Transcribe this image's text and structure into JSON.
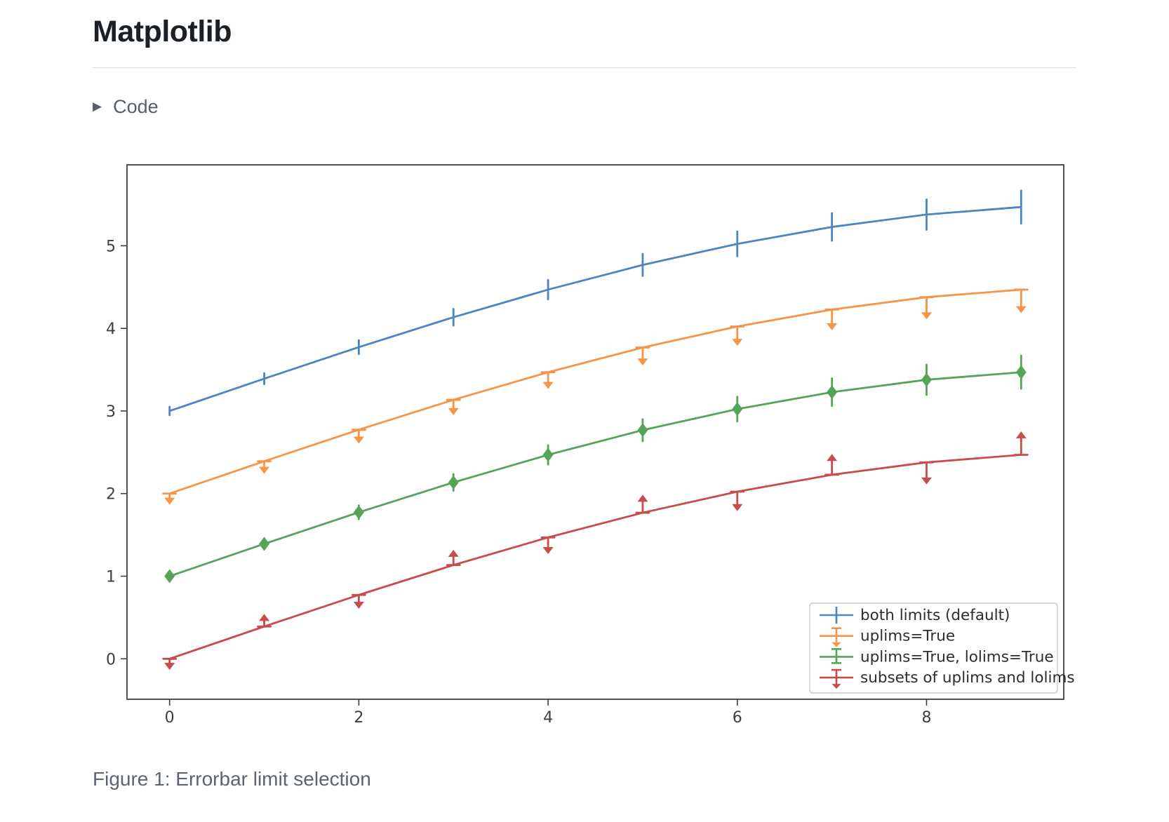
{
  "page": {
    "title": "Matplotlib"
  },
  "code_section": {
    "label": "Code",
    "icon": "triangle-right-icon"
  },
  "figure": {
    "caption": "Figure 1: Errorbar limit selection"
  },
  "chart_data": {
    "type": "line",
    "description": "Matplotlib errorbar limit selection example, four series offset vertically",
    "x": [
      0,
      1,
      2,
      3,
      4,
      5,
      6,
      7,
      8,
      9
    ],
    "yerr": [
      0.05,
      0.067,
      0.083,
      0.1,
      0.117,
      0.133,
      0.15,
      0.167,
      0.183,
      0.2
    ],
    "series": [
      {
        "name": "both limits (default)",
        "color": "#4a86c1",
        "limits": "both",
        "values": [
          3.0,
          3.391,
          3.773,
          4.135,
          4.469,
          4.768,
          5.023,
          5.228,
          5.378,
          5.469
        ]
      },
      {
        "name": "uplims=True",
        "color": "#f79445",
        "limits": "uplims",
        "values": [
          2.0,
          2.391,
          2.773,
          3.135,
          3.469,
          3.768,
          4.023,
          4.228,
          4.378,
          4.469
        ]
      },
      {
        "name": "uplims=True, lolims=True",
        "color": "#55a457",
        "limits": "uplims+lolims",
        "values": [
          1.0,
          1.391,
          1.773,
          2.135,
          2.469,
          2.768,
          3.023,
          3.228,
          3.378,
          3.469
        ]
      },
      {
        "name": "subsets of uplims and lolims",
        "color": "#c84c4c",
        "limits": "alternating",
        "uplims_at": [
          0,
          2,
          4,
          6,
          8
        ],
        "lolims_at": [
          1,
          3,
          5,
          7,
          9
        ],
        "values": [
          0.0,
          0.391,
          0.773,
          1.135,
          1.469,
          1.768,
          2.023,
          2.228,
          2.378,
          2.469
        ]
      }
    ],
    "xticks": [
      0,
      2,
      4,
      6,
      8
    ],
    "yticks": [
      0,
      1,
      2,
      3,
      4,
      5
    ],
    "xlim": [
      -0.45,
      9.45
    ],
    "ylim": [
      -0.49,
      5.98
    ],
    "grid": false,
    "title": "",
    "xlabel": "",
    "ylabel": "",
    "legend_position": "lower right",
    "frame_color": "#3a3f44",
    "legend_border_color": "#c9c9c9"
  }
}
